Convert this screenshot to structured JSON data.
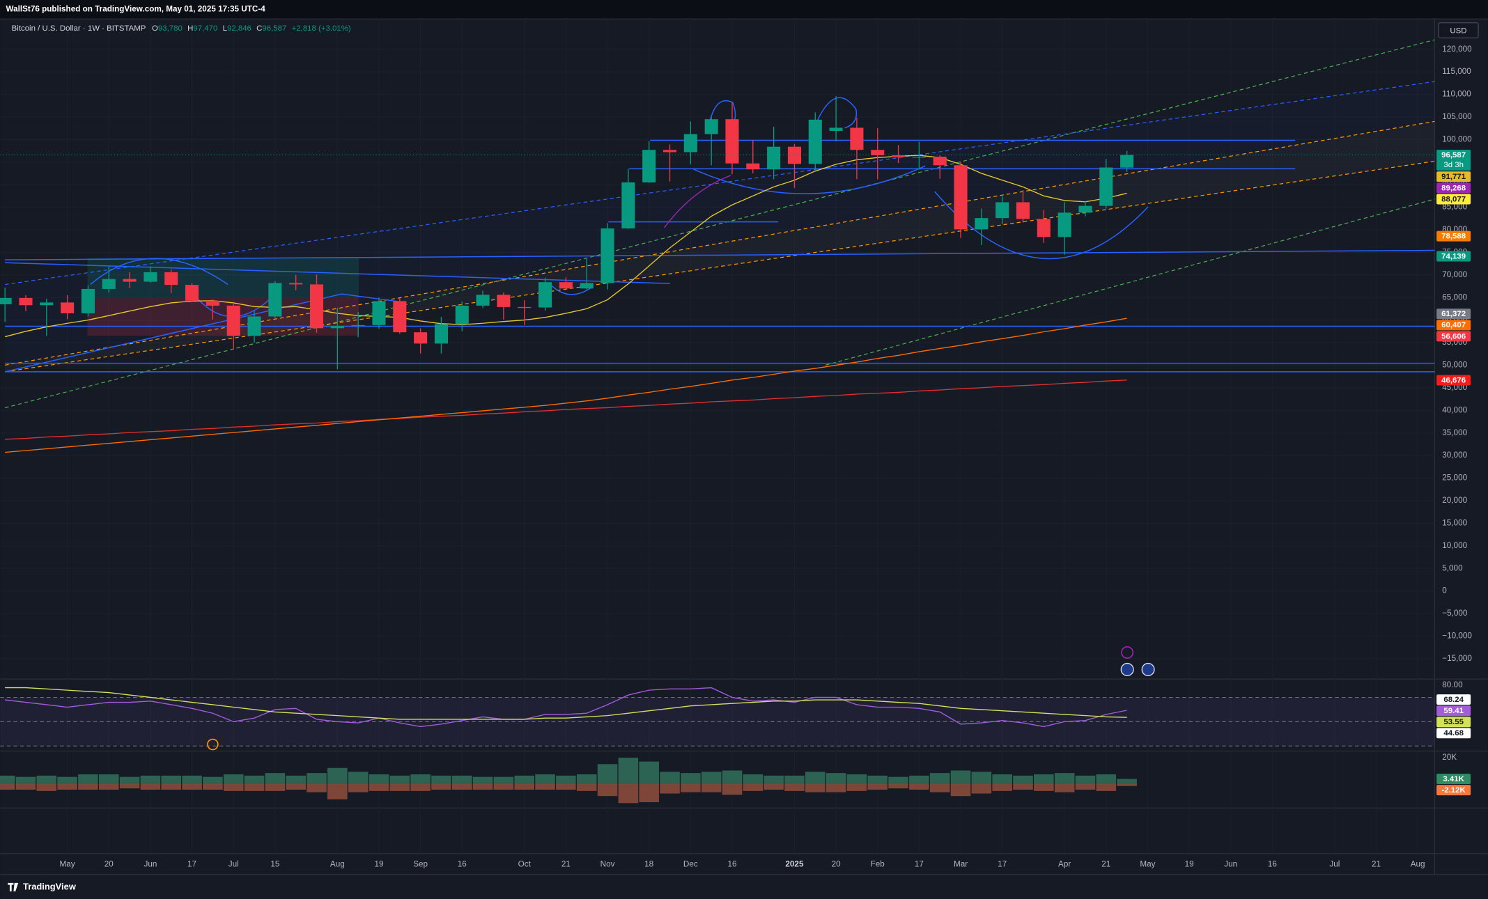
{
  "header": {
    "publisher": "WallSt76 published on TradingView.com, May 01, 2025 17:35 UTC-4",
    "currency": "USD",
    "brand": "TradingView"
  },
  "chart_data": [
    {
      "type": "candlestick",
      "title": "Bitcoin / U.S. Dollar · 1W · BITSTAMP",
      "legend_ohlc": [
        {
          "key": "O",
          "text": "93,780"
        },
        {
          "key": "H",
          "text": "97,470"
        },
        {
          "key": "L",
          "text": "92,846"
        },
        {
          "key": "C",
          "text": "96,587"
        }
      ],
      "change": "+2,818 (+3.01%)",
      "categories": [
        null,
        null,
        null,
        "May",
        null,
        "20",
        null,
        "Jun",
        null,
        "17",
        null,
        "Jul",
        null,
        "15",
        null,
        null,
        "Aug",
        null,
        "19",
        null,
        "Sep",
        null,
        "16",
        null,
        null,
        "Oct",
        null,
        "21",
        null,
        "Nov",
        null,
        "18",
        null,
        "Dec",
        null,
        "16",
        null,
        null,
        "2025",
        null,
        "20",
        null,
        "Feb",
        null,
        "17",
        null,
        "Mar",
        null,
        "17",
        null,
        null,
        "Apr",
        null,
        "21",
        null,
        "May",
        null,
        "19",
        null,
        "Jun",
        null,
        "16",
        null,
        null,
        "Jul",
        null,
        "21",
        null,
        "Aug"
      ],
      "open": [
        63500,
        64900,
        63300,
        63900,
        61500,
        66900,
        69100,
        68500,
        70600,
        67800,
        64300,
        63200,
        56500,
        60800,
        68200,
        67900,
        58200,
        58700,
        58900,
        64200,
        57300,
        54800,
        59100,
        63200,
        65600,
        62900,
        62800,
        68400,
        67000,
        68200,
        80300,
        90500,
        97700,
        97200,
        101200,
        104500,
        94700,
        93400,
        98400,
        94600,
        101900,
        102600,
        97700,
        96500,
        96100,
        96200,
        94300,
        80100,
        82600,
        86100,
        82400,
        78400,
        83800,
        85300,
        93780,
        null,
        null,
        null,
        null,
        null,
        null,
        null,
        null,
        null,
        null,
        null,
        null,
        null,
        null
      ],
      "high": [
        67200,
        65500,
        64700,
        65500,
        67700,
        71900,
        70600,
        71900,
        71200,
        68200,
        64600,
        63800,
        62000,
        68600,
        70000,
        70100,
        62700,
        61800,
        65000,
        64900,
        58200,
        60700,
        64100,
        66500,
        66100,
        64400,
        69400,
        69500,
        73600,
        81500,
        93500,
        99600,
        98900,
        104000,
        105000,
        108200,
        99900,
        102800,
        99000,
        106000,
        109600,
        104800,
        102500,
        98800,
        99500,
        96500,
        95000,
        84700,
        87400,
        88800,
        84400,
        86100,
        86400,
        95700,
        97470,
        null,
        null,
        null,
        null,
        null,
        null,
        null,
        null,
        null,
        null,
        null,
        null,
        null,
        null
      ],
      "low": [
        59600,
        62000,
        56500,
        60200,
        60800,
        66100,
        67100,
        68300,
        66000,
        64000,
        60100,
        53500,
        55000,
        60400,
        66600,
        57200,
        49100,
        56200,
        58100,
        57000,
        52600,
        52600,
        57500,
        62700,
        60100,
        58900,
        62100,
        66600,
        66800,
        66800,
        80200,
        90400,
        90700,
        94500,
        94300,
        92300,
        92500,
        91200,
        89300,
        92800,
        99600,
        91200,
        91200,
        94800,
        93400,
        91300,
        78200,
        76600,
        81200,
        81600,
        77100,
        74500,
        83000,
        84700,
        92846,
        null,
        null,
        null,
        null,
        null,
        null,
        null,
        null,
        null,
        null,
        null,
        null,
        null,
        null
      ],
      "close": [
        64900,
        63300,
        63900,
        61500,
        66900,
        69100,
        68500,
        70600,
        67800,
        64300,
        63200,
        56500,
        60800,
        68200,
        67900,
        58200,
        58700,
        58900,
        64200,
        57300,
        54800,
        59100,
        63200,
        65600,
        62900,
        62800,
        68400,
        67000,
        68200,
        80300,
        90500,
        97700,
        97200,
        101200,
        104500,
        94700,
        93400,
        98400,
        94600,
        104400,
        102600,
        97700,
        96500,
        96100,
        96200,
        94300,
        80100,
        82600,
        86100,
        82400,
        78400,
        83800,
        85300,
        93800,
        96587,
        null,
        null,
        null,
        null,
        null,
        null,
        null,
        null,
        null,
        null,
        null,
        null,
        null,
        null
      ],
      "up_color": "#089981",
      "down_color": "#f23645",
      "series": [
        {
          "color": "#e0302f",
          "values": [
            33600,
            33800,
            34100,
            34300,
            34600,
            34800,
            35100,
            35300,
            35500,
            35800,
            36000,
            36300,
            36500,
            36800,
            37000,
            37200,
            37500,
            37700,
            38000,
            38200,
            38500,
            38700,
            38900,
            39200,
            39400,
            39700,
            39900,
            40200,
            40400,
            40600,
            40900,
            41100,
            41400,
            41600,
            41900,
            42100,
            42300,
            42600,
            42800,
            43100,
            43300,
            43600,
            43800,
            44000,
            44300,
            44500,
            44800,
            45000,
            45300,
            45500,
            45700,
            46000,
            46200,
            46500,
            46700,
            null,
            null,
            null,
            null,
            null,
            null,
            null,
            null,
            null,
            null,
            null,
            null,
            null,
            null
          ]
        },
        {
          "color": "#ff6d00",
          "values": [
            30700,
            31100,
            31500,
            31900,
            32300,
            32700,
            33100,
            33500,
            33900,
            34300,
            34700,
            35100,
            35500,
            35900,
            36300,
            36700,
            37100,
            37500,
            37900,
            38300,
            38700,
            39100,
            39500,
            39900,
            40300,
            40700,
            41100,
            41600,
            42100,
            42700,
            43400,
            44000,
            44700,
            45300,
            46000,
            46700,
            47300,
            48000,
            48700,
            49300,
            50000,
            50700,
            51500,
            52200,
            53000,
            53700,
            54400,
            55200,
            55900,
            56600,
            57400,
            58100,
            58900,
            59600,
            60400,
            null,
            null,
            null,
            null,
            null,
            null,
            null,
            null,
            null,
            null,
            null,
            null,
            null,
            null
          ]
        },
        {
          "color": "#e5c92c",
          "values": [
            56300,
            57500,
            58500,
            59300,
            60000,
            61000,
            62000,
            63000,
            63800,
            64200,
            64300,
            63800,
            63000,
            62800,
            63000,
            62300,
            61500,
            61000,
            60800,
            60600,
            59800,
            59200,
            59000,
            59300,
            59700,
            60000,
            60600,
            61500,
            62500,
            64500,
            68000,
            72000,
            76000,
            79500,
            83000,
            85500,
            87500,
            89500,
            91000,
            93000,
            94500,
            95500,
            96000,
            96300,
            96500,
            96000,
            94500,
            92500,
            91000,
            89500,
            87500,
            86500,
            86200,
            87000,
            88100,
            null,
            null,
            null,
            null,
            null,
            null,
            null,
            null,
            null,
            null,
            null,
            null,
            null,
            null
          ]
        }
      ],
      "ylim": [
        -19500,
        126700
      ],
      "yticks": [
        {
          "value": 120000,
          "label": "120,000"
        },
        {
          "value": 115000,
          "label": "115,000"
        },
        {
          "value": 110000,
          "label": "110,000"
        },
        {
          "value": 105000,
          "label": "105,000"
        },
        {
          "value": 100000,
          "label": "100,000"
        },
        {
          "value": 95000,
          "label": "95,000"
        },
        {
          "value": 90000,
          "label": "90,000"
        },
        {
          "value": 85000,
          "label": "85,000"
        },
        {
          "value": 80000,
          "label": "80,000"
        },
        {
          "value": 75000,
          "label": "75,000"
        },
        {
          "value": 70000,
          "label": "70,000"
        },
        {
          "value": 65000,
          "label": "65,000"
        },
        {
          "value": 60000,
          "label": "60,000"
        },
        {
          "value": 55000,
          "label": "55,000"
        },
        {
          "value": 50000,
          "label": "50,000"
        },
        {
          "value": 45000,
          "label": "45,000"
        },
        {
          "value": 40000,
          "label": "40,000"
        },
        {
          "value": 35000,
          "label": "35,000"
        },
        {
          "value": 30000,
          "label": "30,000"
        },
        {
          "value": 25000,
          "label": "25,000"
        },
        {
          "value": 20000,
          "label": "20,000"
        },
        {
          "value": 15000,
          "label": "15,000"
        },
        {
          "value": 10000,
          "label": "10,000"
        },
        {
          "value": 5000,
          "label": "5,000"
        },
        0,
        {
          "value": -5000,
          "label": "−5,000"
        },
        {
          "value": -10000,
          "label": "−10,000"
        },
        {
          "value": -15000,
          "label": "−15,000"
        }
      ],
      "grid": true,
      "price_labels": [
        {
          "value": 96587,
          "label": "96,587",
          "color": "#089981",
          "countdown": "3d 3h"
        },
        {
          "value": 91771,
          "label": "91,771",
          "color": "#e8b923"
        },
        {
          "value": 89268,
          "label": "89,268",
          "color": "#9c27b0"
        },
        {
          "value": 88077,
          "label": "88,077",
          "color": "#ffeb3b"
        },
        {
          "value": 78588,
          "label": "78,588",
          "color": "#f57c00"
        },
        {
          "value": 74139,
          "label": "74,139",
          "color": "#089981"
        },
        {
          "value": 61372,
          "label": "61,372",
          "color": "#787b86"
        },
        {
          "value": 60407,
          "label": "60,407",
          "color": "#ff6d00"
        },
        {
          "value": 56606,
          "label": "56,606",
          "color": "#f23645"
        },
        {
          "value": 46676,
          "label": "46,676",
          "color": "#f41d1d"
        }
      ]
    },
    {
      "type": "line",
      "ylim": [
        25.8,
        85.2
      ],
      "yticks": [
        {
          "value": 80,
          "label": "80.00"
        }
      ],
      "levels": [
        70,
        50,
        30
      ],
      "series": [
        {
          "color": "#a35ddb",
          "values": [
            68,
            66,
            64,
            62,
            64,
            66,
            66,
            67,
            64,
            61,
            57,
            50,
            53,
            60,
            61,
            52,
            50,
            49,
            53,
            49,
            46,
            48,
            51,
            54,
            52,
            52,
            56,
            56,
            57,
            64,
            72,
            76,
            77,
            77,
            78,
            70,
            67,
            68,
            66,
            70,
            70,
            64,
            62,
            62,
            61,
            58,
            48,
            49,
            51,
            49,
            46,
            50,
            51,
            56,
            59.41,
            null,
            null,
            null,
            null,
            null,
            null,
            null,
            null,
            null,
            null,
            null,
            null,
            null,
            null
          ]
        },
        {
          "color": "#d4e157",
          "values": [
            78,
            78,
            77,
            76,
            75,
            74,
            72,
            70,
            68,
            66,
            64,
            62,
            60,
            58,
            57,
            56,
            55,
            54,
            53,
            52,
            52,
            52,
            52,
            52,
            52,
            52,
            53,
            53,
            54,
            55,
            57,
            59,
            61,
            63,
            64,
            65,
            66,
            67,
            67,
            68,
            68,
            68,
            67,
            66,
            65,
            63,
            61,
            60,
            59,
            58,
            57,
            56,
            55,
            54,
            53.55,
            null,
            null,
            null,
            null,
            null,
            null,
            null,
            null,
            null,
            null,
            null,
            null,
            null,
            null
          ]
        }
      ],
      "price_labels": [
        {
          "value": 68.24,
          "color": "#ffffff"
        },
        {
          "value": 59.41,
          "color": "#a35ddb"
        },
        {
          "value": 53.55,
          "color": "#d4e157"
        },
        {
          "value": 44.68,
          "color": "#ffffff"
        }
      ]
    },
    {
      "type": "bar",
      "ylim": [
        -19300,
        25200
      ],
      "yticks": [
        {
          "value": 20000,
          "label": "20K"
        }
      ],
      "series": [
        {
          "color": "#2f6b58",
          "values": [
            6000,
            5000,
            6000,
            5000,
            7000,
            7000,
            5000,
            6000,
            6000,
            6000,
            5000,
            7000,
            6000,
            8000,
            6000,
            8000,
            12000,
            9000,
            7000,
            6000,
            7000,
            6000,
            6000,
            5000,
            5000,
            6000,
            7000,
            6000,
            7000,
            15000,
            20000,
            17000,
            9000,
            8000,
            9000,
            10000,
            7000,
            6000,
            6000,
            9000,
            8000,
            7000,
            6000,
            5000,
            6000,
            8000,
            10000,
            9000,
            7000,
            6000,
            7000,
            8000,
            6000,
            7000,
            3410,
            null,
            null,
            null,
            null,
            null,
            null,
            null,
            null,
            null,
            null,
            null,
            null,
            null,
            null
          ]
        },
        {
          "color": "#8a4a3c",
          "values": [
            -5000,
            -5000,
            -6000,
            -5000,
            -5000,
            -5000,
            -4000,
            -5000,
            -5000,
            -5000,
            -5000,
            -6000,
            -6000,
            -6000,
            -5000,
            -7000,
            -12600,
            -7000,
            -6000,
            -6000,
            -6000,
            -5000,
            -5000,
            -5000,
            -5000,
            -5000,
            -5000,
            -5000,
            -6000,
            -10000,
            -15500,
            -14800,
            -8000,
            -7000,
            -7000,
            -9000,
            -6000,
            -5000,
            -6000,
            -7000,
            -7000,
            -6000,
            -5000,
            -4000,
            -5000,
            -7000,
            -10000,
            -8000,
            -6000,
            -5000,
            -6000,
            -7000,
            -5000,
            -6000,
            -2120,
            null,
            null,
            null,
            null,
            null,
            null,
            null,
            null,
            null,
            null,
            null,
            null,
            null,
            null
          ]
        }
      ],
      "price_labels": [
        {
          "value": 3410,
          "label": "3.41K",
          "color": "#2e8b63"
        },
        {
          "value": -2120,
          "label": "-2.12K",
          "color": "#f5793a"
        }
      ]
    }
  ]
}
